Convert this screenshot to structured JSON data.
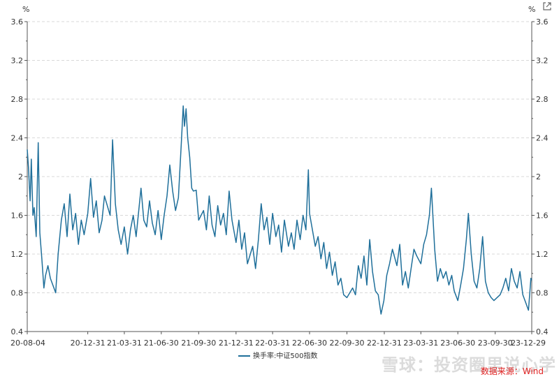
{
  "colors": {
    "line": "#1f6f9a",
    "grid": "#d9d9d9",
    "axis": "#555555",
    "source": "#e02020"
  },
  "unit_left": "%",
  "unit_right": "%",
  "export_icon": "external-link-icon",
  "watermark": "雪球：投资圈里说心学",
  "source": "数据来源：Wind",
  "chart_data": {
    "type": "line",
    "grid": "horizontal-dashed",
    "legend_position": "bottom-center",
    "ylim": [
      0.4,
      3.6
    ],
    "yticks": [
      "0.4",
      "0.8",
      "1.2",
      "1.6",
      "2",
      "2.4",
      "2.8",
      "3.2",
      "3.6"
    ],
    "xlim": [
      "2020-08-04",
      "2023-12-29"
    ],
    "xticks": [
      "20-08-04",
      "20-12-31",
      "21-03-31",
      "21-06-30",
      "21-09-30",
      "21-12-31",
      "22-03-31",
      "22-06-30",
      "22-09-30",
      "22-12-31",
      "23-03-31",
      "23-06-30",
      "23-09-30",
      "23-12-29"
    ],
    "series": [
      {
        "name": "换手率:中证500指数",
        "points": [
          [
            "2020-08-04",
            2.28
          ],
          [
            "2020-08-07",
            2.1
          ],
          [
            "2020-08-11",
            1.75
          ],
          [
            "2020-08-14",
            2.18
          ],
          [
            "2020-08-18",
            1.6
          ],
          [
            "2020-08-21",
            1.68
          ],
          [
            "2020-08-26",
            1.38
          ],
          [
            "2020-08-31",
            2.35
          ],
          [
            "2020-09-04",
            1.42
          ],
          [
            "2020-09-09",
            1.15
          ],
          [
            "2020-09-14",
            0.85
          ],
          [
            "2020-09-18",
            0.98
          ],
          [
            "2020-09-24",
            1.08
          ],
          [
            "2020-09-30",
            0.95
          ],
          [
            "2020-10-13",
            0.8
          ],
          [
            "2020-10-19",
            1.2
          ],
          [
            "2020-10-27",
            1.55
          ],
          [
            "2020-11-03",
            1.72
          ],
          [
            "2020-11-10",
            1.38
          ],
          [
            "2020-11-17",
            1.82
          ],
          [
            "2020-11-24",
            1.45
          ],
          [
            "2020-12-01",
            1.62
          ],
          [
            "2020-12-08",
            1.3
          ],
          [
            "2020-12-15",
            1.55
          ],
          [
            "2020-12-22",
            1.4
          ],
          [
            "2020-12-31",
            1.62
          ],
          [
            "2021-01-07",
            1.98
          ],
          [
            "2021-01-14",
            1.58
          ],
          [
            "2021-01-21",
            1.75
          ],
          [
            "2021-01-28",
            1.42
          ],
          [
            "2021-02-04",
            1.55
          ],
          [
            "2021-02-10",
            1.8
          ],
          [
            "2021-02-24",
            1.6
          ],
          [
            "2021-03-02",
            2.38
          ],
          [
            "2021-03-09",
            1.72
          ],
          [
            "2021-03-16",
            1.45
          ],
          [
            "2021-03-23",
            1.3
          ],
          [
            "2021-03-31",
            1.48
          ],
          [
            "2021-04-08",
            1.2
          ],
          [
            "2021-04-15",
            1.45
          ],
          [
            "2021-04-22",
            1.6
          ],
          [
            "2021-04-29",
            1.38
          ],
          [
            "2021-05-11",
            1.88
          ],
          [
            "2021-05-18",
            1.55
          ],
          [
            "2021-05-25",
            1.48
          ],
          [
            "2021-06-01",
            1.75
          ],
          [
            "2021-06-08",
            1.52
          ],
          [
            "2021-06-15",
            1.4
          ],
          [
            "2021-06-22",
            1.65
          ],
          [
            "2021-06-30",
            1.35
          ],
          [
            "2021-07-07",
            1.6
          ],
          [
            "2021-07-14",
            1.8
          ],
          [
            "2021-07-21",
            2.12
          ],
          [
            "2021-07-28",
            1.85
          ],
          [
            "2021-08-04",
            1.65
          ],
          [
            "2021-08-11",
            1.78
          ],
          [
            "2021-08-18",
            2.32
          ],
          [
            "2021-08-23",
            2.73
          ],
          [
            "2021-08-26",
            2.52
          ],
          [
            "2021-08-30",
            2.7
          ],
          [
            "2021-09-03",
            2.4
          ],
          [
            "2021-09-08",
            2.2
          ],
          [
            "2021-09-13",
            1.88
          ],
          [
            "2021-09-17",
            1.85
          ],
          [
            "2021-09-24",
            1.86
          ],
          [
            "2021-09-30",
            1.55
          ],
          [
            "2021-10-12",
            1.65
          ],
          [
            "2021-10-19",
            1.45
          ],
          [
            "2021-10-26",
            1.8
          ],
          [
            "2021-11-02",
            1.5
          ],
          [
            "2021-11-09",
            1.38
          ],
          [
            "2021-11-16",
            1.7
          ],
          [
            "2021-11-23",
            1.5
          ],
          [
            "2021-11-30",
            1.62
          ],
          [
            "2021-12-07",
            1.4
          ],
          [
            "2021-12-14",
            1.85
          ],
          [
            "2021-12-21",
            1.55
          ],
          [
            "2021-12-31",
            1.32
          ],
          [
            "2022-01-07",
            1.55
          ],
          [
            "2022-01-14",
            1.25
          ],
          [
            "2022-01-21",
            1.42
          ],
          [
            "2022-01-28",
            1.1
          ],
          [
            "2022-02-10",
            1.28
          ],
          [
            "2022-02-17",
            1.05
          ],
          [
            "2022-02-24",
            1.35
          ],
          [
            "2022-03-03",
            1.72
          ],
          [
            "2022-03-10",
            1.45
          ],
          [
            "2022-03-17",
            1.58
          ],
          [
            "2022-03-24",
            1.3
          ],
          [
            "2022-03-31",
            1.62
          ],
          [
            "2022-04-08",
            1.38
          ],
          [
            "2022-04-15",
            1.5
          ],
          [
            "2022-04-22",
            1.22
          ],
          [
            "2022-04-29",
            1.55
          ],
          [
            "2022-05-09",
            1.28
          ],
          [
            "2022-05-16",
            1.42
          ],
          [
            "2022-05-23",
            1.25
          ],
          [
            "2022-05-30",
            1.55
          ],
          [
            "2022-06-07",
            1.35
          ],
          [
            "2022-06-14",
            1.6
          ],
          [
            "2022-06-21",
            1.45
          ],
          [
            "2022-06-27",
            2.07
          ],
          [
            "2022-06-30",
            1.62
          ],
          [
            "2022-07-07",
            1.45
          ],
          [
            "2022-07-14",
            1.28
          ],
          [
            "2022-07-21",
            1.38
          ],
          [
            "2022-07-28",
            1.15
          ],
          [
            "2022-08-04",
            1.32
          ],
          [
            "2022-08-11",
            1.05
          ],
          [
            "2022-08-18",
            1.22
          ],
          [
            "2022-08-25",
            0.98
          ],
          [
            "2022-09-01",
            1.12
          ],
          [
            "2022-09-08",
            0.88
          ],
          [
            "2022-09-15",
            0.95
          ],
          [
            "2022-09-22",
            0.78
          ],
          [
            "2022-09-30",
            0.75
          ],
          [
            "2022-10-14",
            0.85
          ],
          [
            "2022-10-21",
            0.78
          ],
          [
            "2022-10-28",
            1.08
          ],
          [
            "2022-11-04",
            0.95
          ],
          [
            "2022-11-11",
            1.18
          ],
          [
            "2022-11-18",
            0.88
          ],
          [
            "2022-11-25",
            1.35
          ],
          [
            "2022-12-02",
            1.02
          ],
          [
            "2022-12-09",
            0.82
          ],
          [
            "2022-12-16",
            0.78
          ],
          [
            "2022-12-23",
            0.58
          ],
          [
            "2022-12-30",
            0.72
          ],
          [
            "2023-01-06",
            0.98
          ],
          [
            "2023-01-13",
            1.1
          ],
          [
            "2023-01-20",
            1.25
          ],
          [
            "2023-01-31",
            1.08
          ],
          [
            "2023-02-07",
            1.3
          ],
          [
            "2023-02-14",
            0.88
          ],
          [
            "2023-02-21",
            1.02
          ],
          [
            "2023-02-28",
            0.85
          ],
          [
            "2023-03-07",
            1.05
          ],
          [
            "2023-03-14",
            1.25
          ],
          [
            "2023-03-21",
            1.18
          ],
          [
            "2023-03-31",
            1.1
          ],
          [
            "2023-04-07",
            1.3
          ],
          [
            "2023-04-14",
            1.4
          ],
          [
            "2023-04-21",
            1.6
          ],
          [
            "2023-04-26",
            1.88
          ],
          [
            "2023-05-04",
            1.25
          ],
          [
            "2023-05-11",
            0.92
          ],
          [
            "2023-05-18",
            1.05
          ],
          [
            "2023-05-25",
            0.95
          ],
          [
            "2023-06-01",
            1.02
          ],
          [
            "2023-06-08",
            0.88
          ],
          [
            "2023-06-15",
            0.98
          ],
          [
            "2023-06-21",
            0.82
          ],
          [
            "2023-06-30",
            0.72
          ],
          [
            "2023-07-07",
            0.88
          ],
          [
            "2023-07-14",
            1.05
          ],
          [
            "2023-07-21",
            1.35
          ],
          [
            "2023-07-26",
            1.62
          ],
          [
            "2023-08-02",
            1.2
          ],
          [
            "2023-08-09",
            0.92
          ],
          [
            "2023-08-16",
            0.85
          ],
          [
            "2023-08-23",
            1.05
          ],
          [
            "2023-08-30",
            1.38
          ],
          [
            "2023-09-06",
            0.92
          ],
          [
            "2023-09-13",
            0.8
          ],
          [
            "2023-09-20",
            0.75
          ],
          [
            "2023-09-27",
            0.72
          ],
          [
            "2023-10-12",
            0.78
          ],
          [
            "2023-10-19",
            0.85
          ],
          [
            "2023-10-26",
            0.95
          ],
          [
            "2023-11-02",
            0.82
          ],
          [
            "2023-11-09",
            1.05
          ],
          [
            "2023-11-16",
            0.92
          ],
          [
            "2023-11-23",
            0.85
          ],
          [
            "2023-11-30",
            1.02
          ],
          [
            "2023-12-07",
            0.78
          ],
          [
            "2023-12-14",
            0.7
          ],
          [
            "2023-12-21",
            0.62
          ],
          [
            "2023-12-27",
            0.95
          ],
          [
            "2023-12-29",
            0.93
          ]
        ]
      }
    ]
  }
}
